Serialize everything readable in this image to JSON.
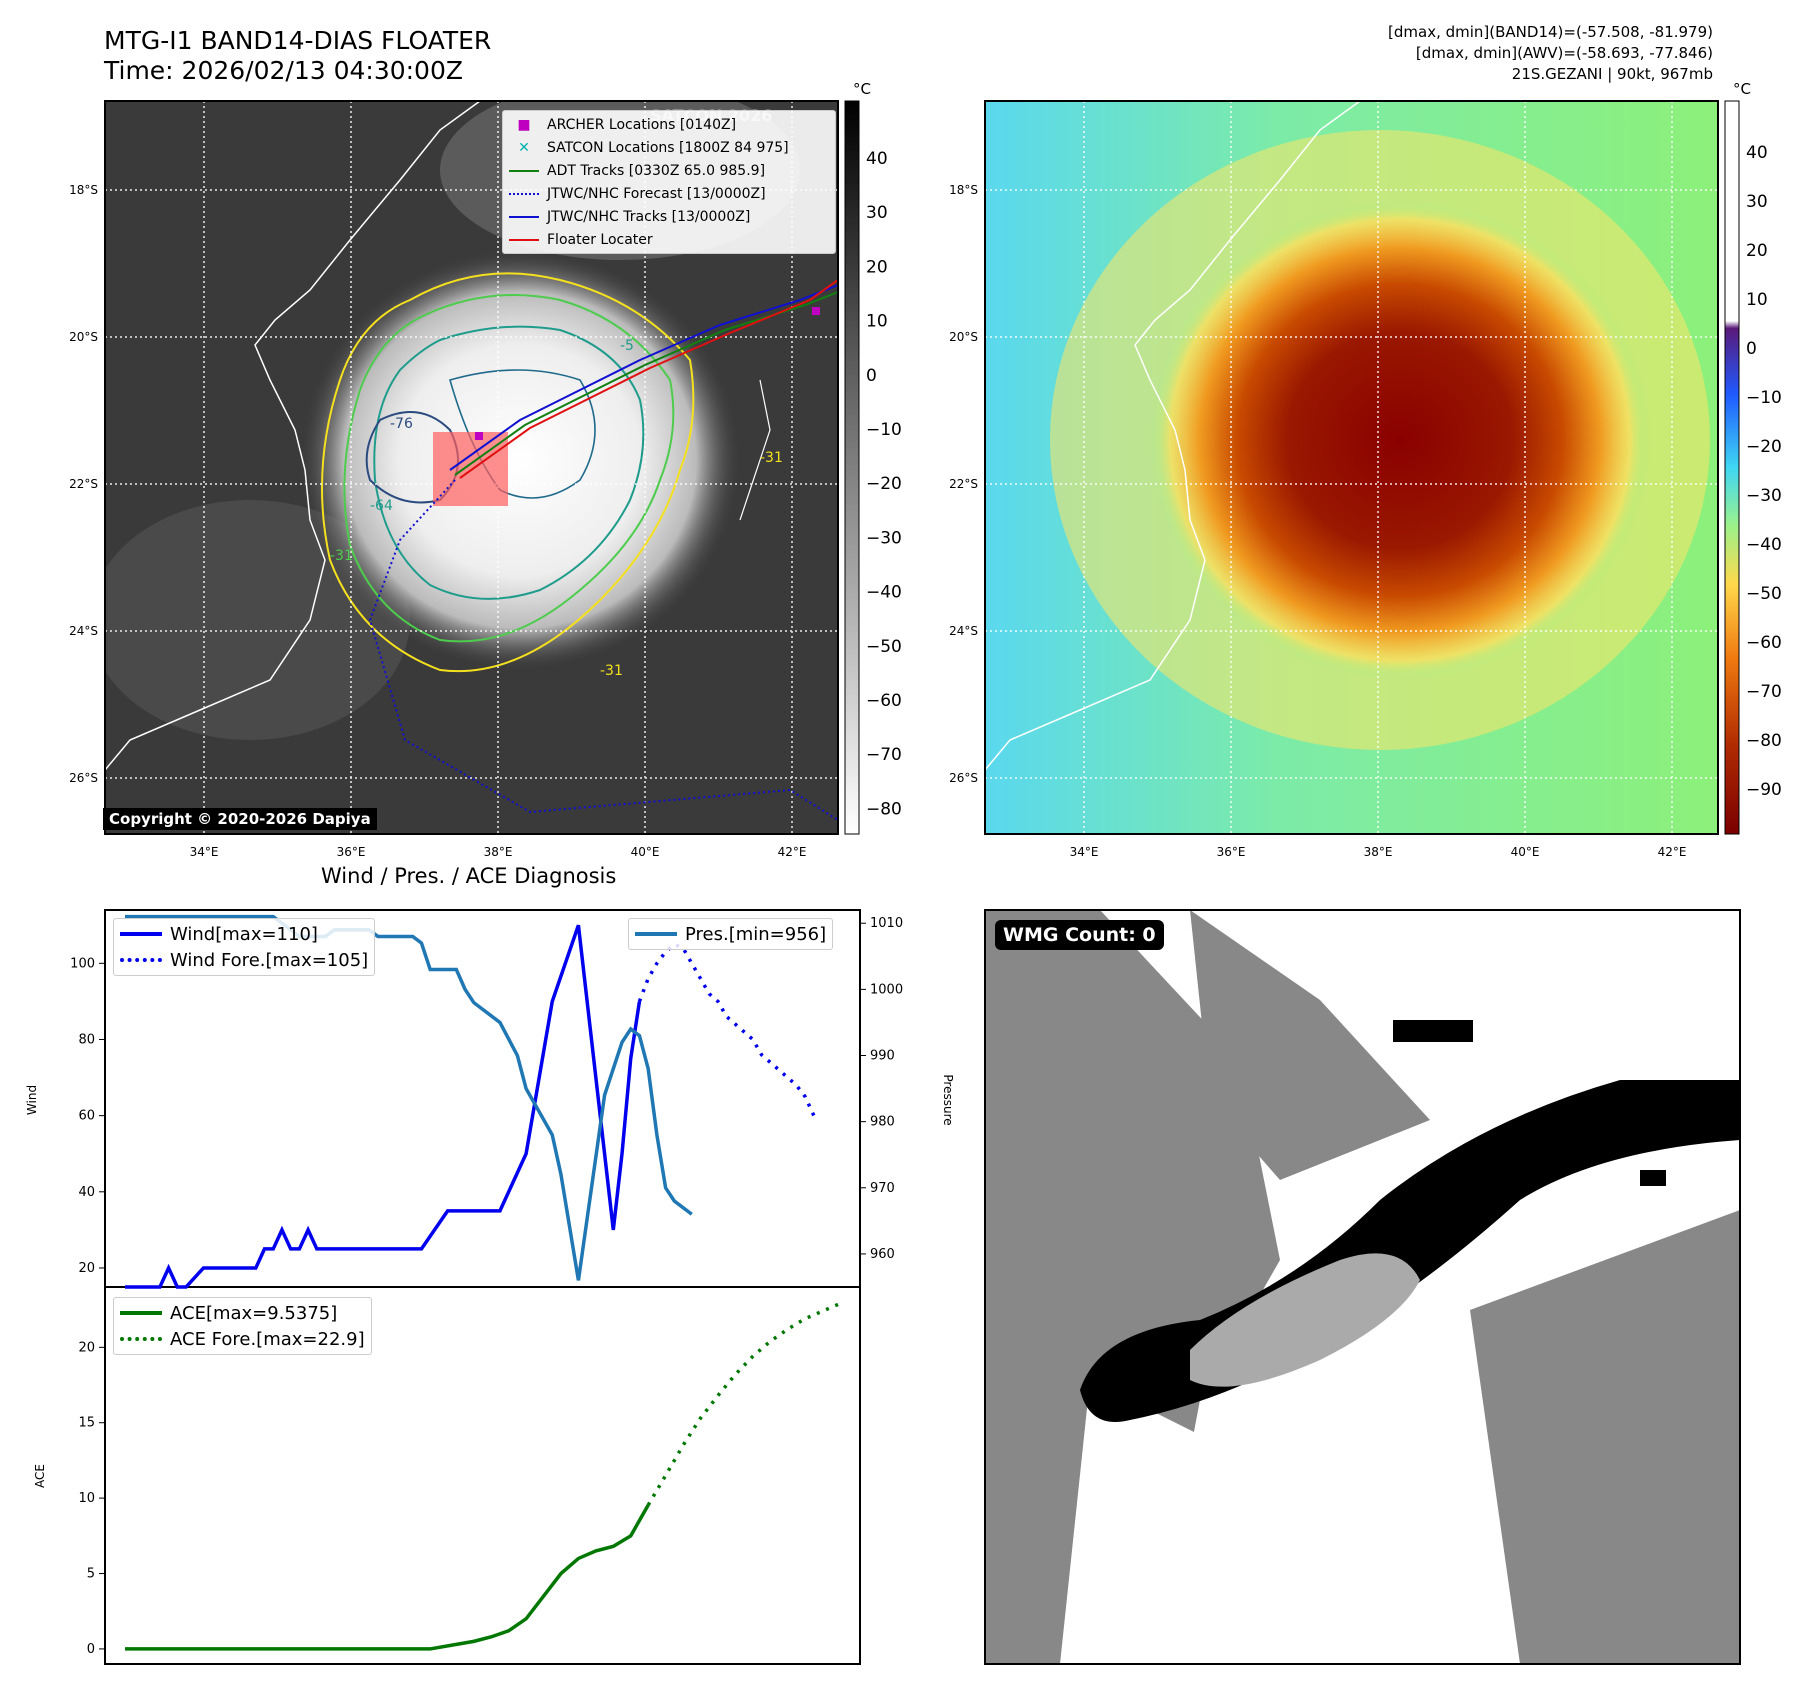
{
  "header": {
    "title_line1": "MTG-I1 BAND14-DIAS FLOATER",
    "title_line2": "Time: 2026/02/13 04:30:00Z",
    "stats_line1": "[dmax, dmin](BAND14)=(-57.508, -81.979)",
    "stats_line2": "[dmax, dmin](AWV)=(-58.693, -77.846)",
    "stats_line3": "21S.GEZANI | 90kt, 967mb"
  },
  "copyright": "Copyright © 2020-2026 Dapiya",
  "wmg_label": "WMG Count: 0",
  "watermark_text": "SATCON 2026",
  "map": {
    "lat_ticks": [
      "18°S",
      "20°S",
      "22°S",
      "24°S",
      "26°S"
    ],
    "lon_ticks": [
      "34°E",
      "36°E",
      "38°E",
      "40°E",
      "42°E"
    ],
    "colorbar_unit": "°C",
    "ir_colorbar_ticks": [
      "40",
      "30",
      "20",
      "10",
      "0",
      "−10",
      "−20",
      "−30",
      "−40",
      "−50",
      "−60",
      "−70",
      "−80"
    ],
    "awv_colorbar_ticks": [
      "40",
      "30",
      "20",
      "10",
      "0",
      "−10",
      "−20",
      "−30",
      "−40",
      "−50",
      "−60",
      "−70",
      "−80",
      "−90"
    ],
    "contour_labels": [
      "-31",
      "-31",
      "-31",
      "-31",
      "-76",
      "-64",
      "-5"
    ],
    "legend": [
      {
        "label": "ARCHER Locations [0140Z]",
        "color": "#c000c0"
      },
      {
        "label": "SATCON Locations [1800Z 84 975]",
        "color": "#00b0b0"
      },
      {
        "label": "ADT Tracks [0330Z 65.0 985.9]",
        "color": "#108010"
      },
      {
        "label": "JTWC/NHC Forecast [13/0000Z]",
        "color": "#1010d0"
      },
      {
        "label": "JTWC/NHC Tracks [13/0000Z]",
        "color": "#1010d0"
      },
      {
        "label": "Floater Locater",
        "color": "#e01010"
      }
    ]
  },
  "diagnosis": {
    "title": "Wind / Pres. / ACE Diagnosis",
    "wind_legend": [
      {
        "label": "Wind[max=110]",
        "color": "#0000ee",
        "style": "solid"
      },
      {
        "label": "Wind Fore.[max=105]",
        "color": "#0000ee",
        "style": "dotted"
      }
    ],
    "pres_legend": [
      {
        "label": "Pres.[min=956]",
        "color": "#1f77b4",
        "style": "solid"
      }
    ],
    "ace_legend": [
      {
        "label": "ACE[max=9.5375]",
        "color": "#007700",
        "style": "solid"
      },
      {
        "label": "ACE Fore.[max=22.9]",
        "color": "#007700",
        "style": "dotted"
      }
    ]
  },
  "chart_data": [
    {
      "type": "line",
      "x": [
        0,
        1,
        2,
        3,
        4,
        5,
        6,
        7,
        8,
        9,
        10,
        11,
        12,
        13,
        14,
        15,
        16,
        17,
        18,
        19,
        20,
        21,
        22,
        23,
        24,
        25,
        26,
        27,
        28,
        29,
        30,
        31,
        32,
        33,
        34,
        35,
        36,
        37,
        38,
        39,
        40,
        41,
        42,
        43,
        44,
        45,
        46,
        47,
        48,
        49,
        50,
        51,
        52,
        53,
        54,
        55,
        56,
        57,
        58,
        59,
        60,
        61,
        62,
        63,
        64,
        65
      ],
      "ylabel": "Wind",
      "y2label": "Pressure",
      "ylim": [
        15,
        114
      ],
      "y2lim": [
        955,
        1012
      ],
      "yticks": [
        20,
        40,
        60,
        80,
        100
      ],
      "y2ticks": [
        960,
        970,
        980,
        990,
        1000,
        1010
      ],
      "series": [
        {
          "name": "Wind[max=110]",
          "axis": "left",
          "x": [
            0,
            4,
            5,
            6,
            7,
            9,
            10,
            15,
            16,
            17,
            18,
            19,
            20,
            21,
            22,
            23,
            34,
            37,
            43,
            46,
            49,
            52,
            54,
            56,
            57,
            58,
            59
          ],
          "values": [
            15,
            15,
            20,
            15,
            15,
            20,
            20,
            20,
            25,
            25,
            30,
            25,
            25,
            30,
            25,
            25,
            25,
            35,
            35,
            50,
            90,
            110,
            70,
            30,
            50,
            75,
            90
          ]
        },
        {
          "name": "Wind Fore.[max=105]",
          "axis": "left",
          "x": [
            59,
            60,
            61,
            62,
            63,
            64,
            65,
            66,
            67,
            68,
            69,
            70,
            71,
            72,
            73,
            74,
            75,
            76,
            77,
            78,
            79
          ],
          "values": [
            90,
            96,
            100,
            103,
            105,
            104,
            100,
            96,
            92,
            90,
            86,
            84,
            82,
            80,
            76,
            74,
            72,
            70,
            68,
            65,
            60
          ]
        },
        {
          "name": "Pres.[min=956]",
          "axis": "right",
          "x": [
            0,
            4,
            5,
            6,
            7,
            9,
            10,
            15,
            16,
            17,
            18,
            19,
            20,
            21,
            22,
            23,
            24,
            25,
            26,
            28,
            29,
            31,
            32,
            33,
            34,
            35,
            37,
            38,
            39,
            40,
            43,
            45,
            46,
            49,
            50,
            52,
            55,
            57,
            58,
            59,
            60,
            61,
            62,
            63,
            65
          ],
          "values": [
            1011,
            1011,
            1011,
            1011,
            1011,
            1011,
            1011,
            1011,
            1011,
            1011,
            1010,
            1009,
            1008,
            1008,
            1008,
            1008,
            1009,
            1009,
            1009,
            1009,
            1008,
            1008,
            1008,
            1008,
            1007,
            1003,
            1003,
            1003,
            1000,
            998,
            995,
            990,
            985,
            978,
            972,
            956,
            984,
            992,
            994,
            993,
            988,
            978,
            970,
            968,
            966
          ]
        }
      ]
    },
    {
      "type": "line",
      "ylabel": "ACE",
      "ylim": [
        -1,
        24
      ],
      "yticks": [
        0,
        5,
        10,
        15,
        20
      ],
      "series": [
        {
          "name": "ACE[max=9.5375]",
          "x": [
            0,
            5,
            10,
            15,
            20,
            25,
            30,
            35,
            38,
            40,
            42,
            44,
            46,
            48,
            50,
            52,
            54,
            56,
            58,
            60
          ],
          "values": [
            0,
            0,
            0,
            0,
            0,
            0,
            0,
            0,
            0.3,
            0.5,
            0.8,
            1.2,
            2.0,
            3.5,
            5.0,
            6.0,
            6.5,
            6.8,
            7.5,
            9.5375
          ]
        },
        {
          "name": "ACE Fore.[max=22.9]",
          "x": [
            60,
            62,
            64,
            66,
            68,
            70,
            72,
            74,
            76,
            78,
            80,
            82
          ],
          "values": [
            9.5375,
            11.5,
            13.5,
            15.3,
            16.8,
            18.2,
            19.4,
            20.4,
            21.2,
            21.9,
            22.4,
            22.9
          ]
        }
      ]
    }
  ]
}
